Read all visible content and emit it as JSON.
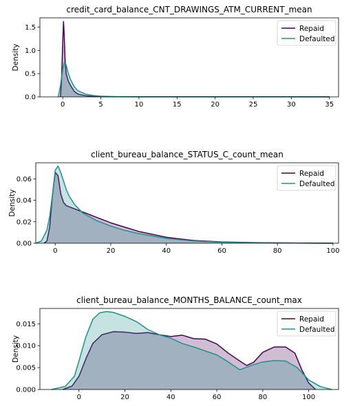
{
  "chart_data": [
    {
      "type": "area",
      "title": "credit_card_balance_CNT_DRAWINGS_ATM_CURRENT_mean",
      "xlabel": "",
      "ylabel": "Density",
      "xlim": [
        -3,
        36.2
      ],
      "ylim": [
        0,
        1.7
      ],
      "xticks": [
        0,
        5,
        10,
        15,
        20,
        25,
        30,
        35
      ],
      "xtick_labels": [
        "0",
        "5",
        "10",
        "15",
        "20",
        "25",
        "30",
        "35"
      ],
      "yticks": [
        0,
        0.5,
        1.0,
        1.5
      ],
      "ytick_labels": [
        "0.0",
        "0.5",
        "1.0",
        "1.5"
      ],
      "grid": false,
      "legend": "top-right",
      "series": [
        {
          "name": "Repaid",
          "color": "#440154",
          "x": [
            -0.3,
            -0.15,
            0,
            0.1,
            0.2,
            0.3,
            0.45,
            0.7,
            1.0,
            1.5,
            2.0,
            3.0,
            4.0,
            6.0,
            10,
            20,
            30,
            35
          ],
          "y": [
            0,
            0.4,
            1.2,
            1.62,
            1.3,
            0.8,
            0.5,
            0.35,
            0.25,
            0.12,
            0.06,
            0.025,
            0.01,
            0.004,
            0.002,
            0.001,
            0.001,
            0
          ]
        },
        {
          "name": "Defaulted",
          "color": "#21908d",
          "x": [
            -0.6,
            -0.3,
            0,
            0.2,
            0.35,
            0.5,
            0.7,
            1.0,
            1.5,
            2.0,
            3.0,
            4.0,
            5.0,
            7.0,
            10,
            20,
            30,
            35
          ],
          "y": [
            0,
            0.25,
            0.6,
            0.75,
            0.73,
            0.65,
            0.52,
            0.38,
            0.22,
            0.13,
            0.06,
            0.03,
            0.015,
            0.006,
            0.002,
            0.001,
            0.001,
            0
          ]
        }
      ]
    },
    {
      "type": "area",
      "title": "client_bureau_balance_STATUS_C_count_mean",
      "xlabel": "",
      "ylabel": "Density",
      "xlim": [
        -7,
        102
      ],
      "ylim": [
        0,
        0.075
      ],
      "xticks": [
        0,
        20,
        40,
        60,
        80,
        100
      ],
      "xtick_labels": [
        "0",
        "20",
        "40",
        "60",
        "80",
        "100"
      ],
      "yticks": [
        0,
        0.02,
        0.04,
        0.06
      ],
      "ytick_labels": [
        "0.00",
        "0.02",
        "0.04",
        "0.06"
      ],
      "grid": false,
      "legend": "top-right",
      "series": [
        {
          "name": "Repaid",
          "color": "#440154",
          "x": [
            -4,
            -3,
            -2,
            -1,
            0,
            1,
            2,
            3,
            4,
            5,
            7,
            10,
            15,
            20,
            25,
            30,
            40,
            50,
            60,
            70,
            80,
            90,
            100
          ],
          "y": [
            0,
            0.002,
            0.015,
            0.045,
            0.066,
            0.063,
            0.046,
            0.038,
            0.035,
            0.034,
            0.032,
            0.029,
            0.024,
            0.019,
            0.015,
            0.011,
            0.0055,
            0.0025,
            0.0012,
            0.0006,
            0.0003,
            0.0002,
            0
          ]
        },
        {
          "name": "Defaulted",
          "color": "#21908d",
          "x": [
            -7,
            -5,
            -3,
            -2,
            -1,
            0,
            1,
            2,
            3,
            4,
            5,
            7,
            10,
            15,
            20,
            25,
            30,
            40,
            50,
            60,
            70,
            80,
            90,
            100
          ],
          "y": [
            0,
            0.002,
            0.012,
            0.025,
            0.045,
            0.068,
            0.072,
            0.066,
            0.058,
            0.05,
            0.044,
            0.036,
            0.028,
            0.021,
            0.016,
            0.012,
            0.009,
            0.0045,
            0.002,
            0.001,
            0.0005,
            0.0003,
            0.0001,
            0
          ]
        }
      ]
    },
    {
      "type": "area",
      "title": "client_bureau_balance_MONTHS_BALANCE_count_max",
      "xlabel": "",
      "ylabel": "Density",
      "xlim": [
        -17,
        113
      ],
      "ylim": [
        0,
        0.0185
      ],
      "xticks": [
        0,
        20,
        40,
        60,
        80,
        100
      ],
      "xtick_labels": [
        "0",
        "20",
        "40",
        "60",
        "80",
        "100"
      ],
      "yticks": [
        0,
        0.005,
        0.01,
        0.015
      ],
      "ytick_labels": [
        "0.000",
        "0.005",
        "0.010",
        "0.015"
      ],
      "grid": false,
      "legend": "top-right",
      "series": [
        {
          "name": "Repaid",
          "color": "#440154",
          "x": [
            -7,
            -3,
            0,
            3,
            6,
            10,
            15,
            20,
            25,
            30,
            35,
            40,
            45,
            50,
            55,
            60,
            65,
            70,
            73,
            76,
            80,
            85,
            90,
            94,
            97,
            100,
            103
          ],
          "y": [
            0,
            0.0008,
            0.003,
            0.007,
            0.0105,
            0.0125,
            0.0132,
            0.0131,
            0.0128,
            0.013,
            0.0125,
            0.0121,
            0.0124,
            0.0116,
            0.0115,
            0.0104,
            0.0083,
            0.0065,
            0.0055,
            0.0062,
            0.0085,
            0.0097,
            0.0097,
            0.0083,
            0.0045,
            0.0015,
            0
          ]
        },
        {
          "name": "Defaulted",
          "color": "#21908d",
          "x": [
            -12,
            -6,
            -2,
            0,
            3,
            6,
            9,
            12,
            15,
            20,
            25,
            30,
            35,
            40,
            45,
            50,
            55,
            60,
            65,
            70,
            75,
            80,
            85,
            90,
            95,
            100,
            105,
            110
          ],
          "y": [
            0,
            0.0007,
            0.003,
            0.0065,
            0.012,
            0.016,
            0.0175,
            0.0178,
            0.0176,
            0.0167,
            0.0155,
            0.0137,
            0.0125,
            0.0117,
            0.0105,
            0.0097,
            0.0088,
            0.0079,
            0.0063,
            0.0045,
            0.0055,
            0.0063,
            0.0066,
            0.0065,
            0.005,
            0.0022,
            0.0007,
            0
          ]
        }
      ]
    }
  ]
}
